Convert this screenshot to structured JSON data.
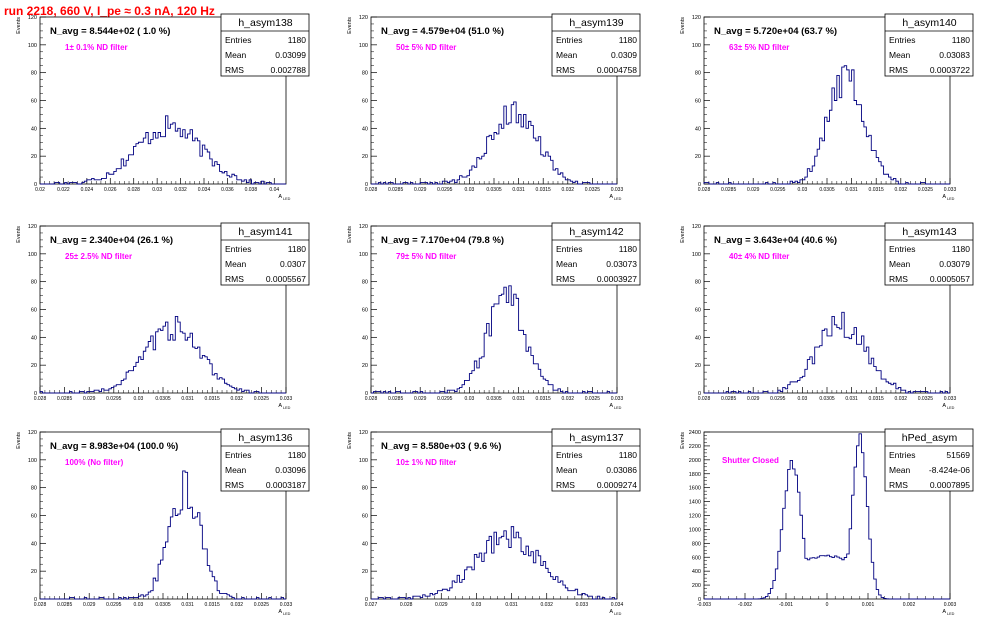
{
  "page": {
    "title": "run 2218,   660 V, I_pe ≈ 0.3 nA, 120 Hz",
    "title_color": "#ff0000",
    "annotation_color": "#ff00ff",
    "hist_color": "#000080",
    "axis_y_label": "Events",
    "axis_x_label": "A",
    "axis_x_label_sub": "LED"
  },
  "stats_labels": {
    "entries": "Entries",
    "mean": "Mean",
    "rms": "RMS"
  },
  "chart_data": [
    {
      "type": "bar",
      "name": "h_asym138",
      "header": "N_avg = 8.544e+02 ( 1.0 %)",
      "annotation": "1± 0.1% ND filter",
      "entries": "1180",
      "mean": "0.03099",
      "rms": "0.002788",
      "xlim": [
        0.02,
        0.041
      ],
      "ylim": [
        0,
        120
      ],
      "xticks": [
        "0.02",
        "0.022",
        "0.024",
        "0.026",
        "0.028",
        "0.03",
        "0.032",
        "0.034",
        "0.036",
        "0.038",
        "0.04"
      ],
      "xtick_values": [
        0.02,
        0.022,
        0.024,
        0.026,
        0.028,
        0.03,
        0.032,
        0.034,
        0.036,
        0.038,
        0.04
      ],
      "yticks": [
        "0",
        "20",
        "40",
        "60",
        "80",
        "100",
        "120"
      ],
      "center": 0.031,
      "sigma": 0.0028,
      "peak": 41
    },
    {
      "type": "bar",
      "name": "h_asym139",
      "header": "N_avg = 4.579e+04 (51.0 %)",
      "annotation": "50± 5% ND filter",
      "entries": "1180",
      "mean": "0.0309",
      "rms": "0.0004758",
      "xlim": [
        0.028,
        0.033
      ],
      "ylim": [
        0,
        120
      ],
      "xticks": [
        "0.028",
        "0.0285",
        "0.029",
        "0.0295",
        "0.03",
        "0.0305",
        "0.031",
        "0.0315",
        "0.032",
        "0.0325",
        "0.033"
      ],
      "xtick_values": [
        0.028,
        0.0285,
        0.029,
        0.0295,
        0.03,
        0.0305,
        0.031,
        0.0315,
        0.032,
        0.0325,
        0.033
      ],
      "yticks": [
        "0",
        "20",
        "40",
        "60",
        "80",
        "100",
        "120"
      ],
      "center": 0.0309,
      "sigma": 0.00048,
      "peak": 52
    },
    {
      "type": "bar",
      "name": "h_asym140",
      "header": "N_avg = 5.720e+04 (63.7 %)",
      "annotation": "63± 5% ND filter",
      "entries": "1180",
      "mean": "0.03083",
      "rms": "0.0003722",
      "xlim": [
        0.028,
        0.033
      ],
      "ylim": [
        0,
        120
      ],
      "xticks": [
        "0.028",
        "0.0285",
        "0.029",
        "0.0295",
        "0.03",
        "0.0305",
        "0.031",
        "0.0315",
        "0.032",
        "0.0325",
        "0.033"
      ],
      "xtick_values": [
        0.028,
        0.0285,
        0.029,
        0.0295,
        0.03,
        0.0305,
        0.031,
        0.0315,
        0.032,
        0.0325,
        0.033
      ],
      "yticks": [
        "0",
        "20",
        "40",
        "60",
        "80",
        "100",
        "120"
      ],
      "center": 0.0309,
      "sigma": 0.00037,
      "peak": 78
    },
    {
      "type": "bar",
      "name": "h_asym141",
      "header": "N_avg = 2.340e+04 (26.1 %)",
      "annotation": "25± 2.5% ND filter",
      "entries": "1180",
      "mean": "0.0307",
      "rms": "0.0005567",
      "xlim": [
        0.028,
        0.033
      ],
      "ylim": [
        0,
        120
      ],
      "xticks": [
        "0.028",
        "0.0285",
        "0.029",
        "0.0295",
        "0.03",
        "0.0305",
        "0.031",
        "0.0315",
        "0.032",
        "0.0325",
        "0.033"
      ],
      "xtick_values": [
        0.028,
        0.0285,
        0.029,
        0.0295,
        0.03,
        0.0305,
        0.031,
        0.0315,
        0.032,
        0.0325,
        0.033
      ],
      "yticks": [
        "0",
        "20",
        "40",
        "60",
        "80",
        "100",
        "120"
      ],
      "center": 0.0307,
      "sigma": 0.00056,
      "peak": 47
    },
    {
      "type": "bar",
      "name": "h_asym142",
      "header": "N_avg = 7.170e+04 (79.8 %)",
      "annotation": "79± 5% ND filter",
      "entries": "1180",
      "mean": "0.03073",
      "rms": "0.0003927",
      "xlim": [
        0.028,
        0.033
      ],
      "ylim": [
        0,
        120
      ],
      "xticks": [
        "0.028",
        "0.0285",
        "0.029",
        "0.0295",
        "0.03",
        "0.0305",
        "0.031",
        "0.0315",
        "0.032",
        "0.0325",
        "0.033"
      ],
      "xtick_values": [
        0.028,
        0.0285,
        0.029,
        0.0295,
        0.03,
        0.0305,
        0.031,
        0.0315,
        0.032,
        0.0325,
        0.033
      ],
      "yticks": [
        "0",
        "20",
        "40",
        "60",
        "80",
        "100",
        "120"
      ],
      "center": 0.03075,
      "sigma": 0.00039,
      "peak": 68
    },
    {
      "type": "bar",
      "name": "h_asym143",
      "header": "N_avg = 3.643e+04 (40.6 %)",
      "annotation": "40± 4% ND filter",
      "entries": "1180",
      "mean": "0.03079",
      "rms": "0.0005057",
      "xlim": [
        0.028,
        0.033
      ],
      "ylim": [
        0,
        120
      ],
      "xticks": [
        "0.028",
        "0.0285",
        "0.029",
        "0.0295",
        "0.03",
        "0.0305",
        "0.031",
        "0.0315",
        "0.032",
        "0.0325",
        "0.033"
      ],
      "xtick_values": [
        0.028,
        0.0285,
        0.029,
        0.0295,
        0.03,
        0.0305,
        0.031,
        0.0315,
        0.032,
        0.0325,
        0.033
      ],
      "yticks": [
        "0",
        "20",
        "40",
        "60",
        "80",
        "100",
        "120"
      ],
      "center": 0.0308,
      "sigma": 0.0005,
      "peak": 50
    },
    {
      "type": "bar",
      "name": "h_asym136",
      "header": "N_avg = 8.983e+04 (100.0 %)",
      "annotation": "100% (No filter)",
      "entries": "1180",
      "mean": "0.03096",
      "rms": "0.0003187",
      "xlim": [
        0.028,
        0.033
      ],
      "ylim": [
        0,
        120
      ],
      "xticks": [
        "0.028",
        "0.0285",
        "0.029",
        "0.0295",
        "0.03",
        "0.0305",
        "0.031",
        "0.0315",
        "0.032",
        "0.0325",
        "0.033"
      ],
      "xtick_values": [
        0.028,
        0.0285,
        0.029,
        0.0295,
        0.03,
        0.0305,
        0.031,
        0.0315,
        0.032,
        0.0325,
        0.033
      ],
      "yticks": [
        "0",
        "20",
        "40",
        "60",
        "80",
        "100",
        "120"
      ],
      "center": 0.03095,
      "sigma": 0.00032,
      "peak": 79
    },
    {
      "type": "bar",
      "name": "h_asym137",
      "header": "N_avg = 8.580e+03 ( 9.6 %)",
      "annotation": "10± 1% ND filter",
      "entries": "1180",
      "mean": "0.03086",
      "rms": "0.0009274",
      "xlim": [
        0.027,
        0.034
      ],
      "ylim": [
        0,
        120
      ],
      "xticks": [
        "0.027",
        "0.028",
        "0.029",
        "0.03",
        "0.031",
        "0.032",
        "0.033",
        "0.034"
      ],
      "xtick_values": [
        0.027,
        0.028,
        0.029,
        0.03,
        0.031,
        0.032,
        0.033,
        0.034
      ],
      "yticks": [
        "0",
        "20",
        "40",
        "60",
        "80",
        "100",
        "120"
      ],
      "center": 0.0309,
      "sigma": 0.00093,
      "peak": 44
    },
    {
      "type": "bar",
      "name": "hPed_asym",
      "header": "",
      "annotation": "Shutter Closed",
      "entries": "51569",
      "mean": "-8.424e-06",
      "rms": "0.0007895",
      "xlim": [
        -0.003,
        0.003
      ],
      "ylim": [
        0,
        2400
      ],
      "xticks": [
        "-0.003",
        "-0.002",
        "-0.001",
        "0",
        "0.001",
        "0.002",
        "0.003"
      ],
      "xtick_values": [
        -0.003,
        -0.002,
        -0.001,
        0,
        0.001,
        0.002,
        0.003
      ],
      "yticks": [
        "0",
        "200",
        "400",
        "600",
        "800",
        "1000",
        "1200",
        "1400",
        "1600",
        "1800",
        "2000",
        "2200",
        "2400"
      ],
      "bimodal": true,
      "peaks": [
        {
          "center": -0.00085,
          "sigma": 0.00022,
          "height": 1950
        },
        {
          "center": 0.0008,
          "sigma": 0.00018,
          "height": 2330
        }
      ],
      "valley": 580
    }
  ]
}
